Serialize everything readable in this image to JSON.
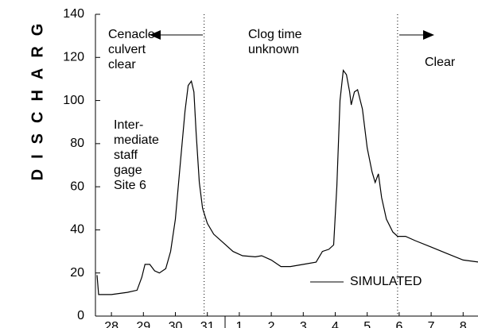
{
  "chart_data": {
    "type": "line",
    "y_label": "DISCHARG",
    "x": [
      0.05,
      0.1,
      0.5,
      1.0,
      1.3,
      1.45,
      1.55,
      1.7,
      1.85,
      2.0,
      2.2,
      2.35,
      2.5,
      2.65,
      2.8,
      2.9,
      3.0,
      3.08,
      3.15,
      3.25,
      3.35,
      3.5,
      3.7,
      4.0,
      4.3,
      4.6,
      5.0,
      5.2,
      5.5,
      5.8,
      6.1,
      6.5,
      6.9,
      7.1,
      7.3,
      7.45,
      7.55,
      7.65,
      7.75,
      7.85,
      7.95,
      8.0,
      8.1,
      8.2,
      8.35,
      8.5,
      8.65,
      8.75,
      8.85,
      8.95,
      9.1,
      9.3,
      9.45,
      9.7,
      10.0,
      10.5,
      11.0,
      11.5,
      12.0
    ],
    "series": [
      {
        "name": "SIMULATED",
        "color": "#000000",
        "values": [
          19,
          10,
          10,
          11,
          12,
          18,
          24,
          24,
          21,
          20,
          22,
          30,
          45,
          70,
          95,
          107,
          109,
          104,
          85,
          62,
          50,
          43,
          38,
          34,
          30,
          28,
          27.5,
          28,
          26,
          23,
          23,
          24,
          25,
          30,
          31,
          33,
          60,
          100,
          114,
          112,
          104,
          98,
          104,
          105,
          96,
          78,
          67,
          62,
          66,
          55,
          45,
          39,
          37,
          37,
          35,
          32,
          29,
          26,
          25
        ]
      }
    ],
    "xlim": [
      0,
      12
    ],
    "xticks": [
      {
        "value": 0.5,
        "label": "28"
      },
      {
        "value": 1.5,
        "label": "29"
      },
      {
        "value": 2.5,
        "label": "30"
      },
      {
        "value": 3.5,
        "label": "31"
      },
      {
        "value": 4.5,
        "label": "1"
      },
      {
        "value": 5.5,
        "label": "2"
      },
      {
        "value": 6.5,
        "label": "3"
      },
      {
        "value": 7.5,
        "label": "4"
      },
      {
        "value": 8.5,
        "label": "5"
      },
      {
        "value": 9.5,
        "label": "6"
      },
      {
        "value": 10.5,
        "label": "7"
      },
      {
        "value": 11.5,
        "label": "8"
      }
    ],
    "ylim": [
      0,
      140
    ],
    "yticks": [
      0,
      20,
      40,
      60,
      80,
      100,
      120,
      140
    ],
    "vlines": [
      3.4,
      9.45
    ],
    "annotations": [
      "Cenacle",
      "culvert",
      "clear",
      "Clog time",
      "unknown",
      "Clear",
      "Inter-",
      "mediate",
      "staff",
      "gage",
      "Site 6"
    ]
  }
}
